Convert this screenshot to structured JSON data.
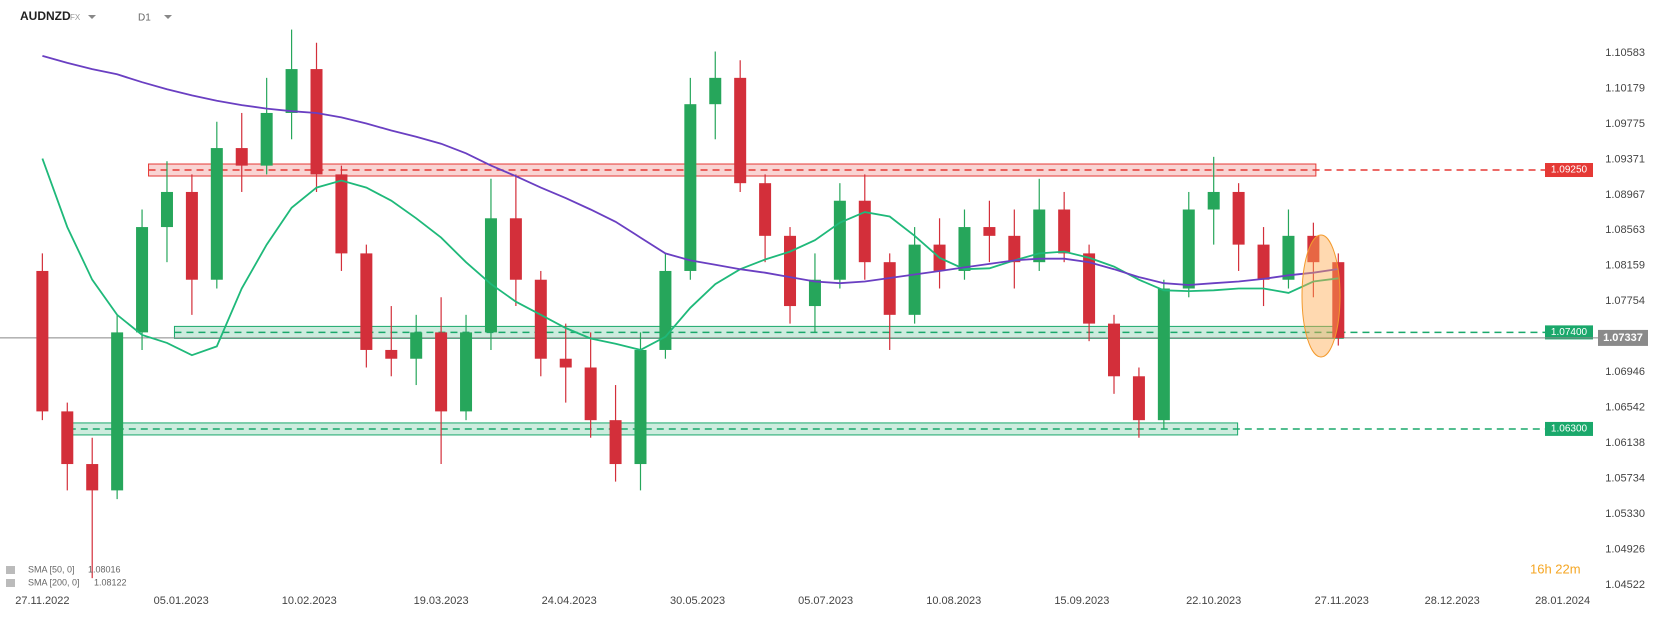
{
  "chart_data": {
    "type": "candlestick",
    "symbol": "AUDNZD",
    "market": "FX",
    "timeframe": "D1",
    "countdown": "16h 22m",
    "xlim": [
      -1.7,
      62.3
    ],
    "xticks": [
      {
        "value": 0,
        "label": "27.11.2022"
      },
      {
        "value": 5.57,
        "label": "05.01.2023"
      },
      {
        "value": 10.71,
        "label": "10.02.2023"
      },
      {
        "value": 16,
        "label": "19.03.2023"
      },
      {
        "value": 21.14,
        "label": "24.04.2023"
      },
      {
        "value": 26.29,
        "label": "30.05.2023"
      },
      {
        "value": 31.43,
        "label": "05.07.2023"
      },
      {
        "value": 36.57,
        "label": "10.08.2023"
      },
      {
        "value": 41.71,
        "label": "15.09.2023"
      },
      {
        "value": 47,
        "label": "22.10.2023"
      },
      {
        "value": 52.14,
        "label": "27.11.2023"
      },
      {
        "value": 56.57,
        "label": "28.12.2023"
      },
      {
        "value": 61,
        "label": "28.01.2024"
      }
    ],
    "ylim": [
      1.04465,
      1.11187
    ],
    "yticks": [
      1.10583,
      1.10179,
      1.09775,
      1.09371,
      1.08967,
      1.08563,
      1.08159,
      1.07754,
      1.06946,
      1.06542,
      1.06138,
      1.05734,
      {
        "value": 1.0533,
        "label": "1.05330"
      },
      1.04926,
      1.04522
    ],
    "up_color": "#26a65b",
    "down_color": "#d32f3a",
    "open": [
      1.081,
      1.065,
      1.059,
      1.056,
      1.074,
      1.086,
      1.09,
      1.08,
      1.095,
      1.093,
      1.099,
      1.104,
      1.092,
      1.083,
      1.072,
      1.071,
      1.074,
      1.065,
      1.074,
      1.087,
      1.08,
      1.071,
      1.07,
      1.064,
      1.059,
      1.072,
      1.081,
      1.1,
      1.103,
      1.091,
      1.085,
      1.077,
      1.08,
      1.089,
      1.082,
      1.076,
      1.084,
      1.081,
      1.086,
      1.085,
      1.082,
      1.088,
      1.083,
      1.075,
      1.069,
      1.064,
      1.079,
      1.088,
      1.09,
      1.084,
      1.08,
      1.085,
      1.082
    ],
    "high": [
      1.083,
      1.066,
      1.062,
      1.076,
      1.088,
      1.0935,
      1.092,
      1.098,
      1.099,
      1.103,
      1.1085,
      1.107,
      1.093,
      1.084,
      1.077,
      1.076,
      1.078,
      1.076,
      1.0915,
      1.092,
      1.081,
      1.075,
      1.074,
      1.068,
      1.074,
      1.083,
      1.103,
      1.106,
      1.105,
      1.092,
      1.086,
      1.083,
      1.091,
      1.092,
      1.083,
      1.086,
      1.087,
      1.088,
      1.089,
      1.088,
      1.0915,
      1.09,
      1.084,
      1.076,
      1.07,
      1.08,
      1.09,
      1.094,
      1.091,
      1.086,
      1.088,
      1.0865,
      1.083
    ],
    "low": [
      1.064,
      1.056,
      1.046,
      1.055,
      1.072,
      1.082,
      1.076,
      1.079,
      1.09,
      1.092,
      1.096,
      1.09,
      1.081,
      1.07,
      1.069,
      1.068,
      1.059,
      1.064,
      1.072,
      1.077,
      1.069,
      1.066,
      1.062,
      1.057,
      1.056,
      1.071,
      1.08,
      1.096,
      1.09,
      1.082,
      1.075,
      1.074,
      1.079,
      1.08,
      1.072,
      1.075,
      1.079,
      1.08,
      1.082,
      1.079,
      1.081,
      1.082,
      1.073,
      1.067,
      1.062,
      1.063,
      1.078,
      1.084,
      1.081,
      1.077,
      1.079,
      1.078,
      1.0725
    ],
    "close": [
      1.065,
      1.059,
      1.056,
      1.074,
      1.086,
      1.09,
      1.08,
      1.095,
      1.093,
      1.099,
      1.104,
      1.092,
      1.083,
      1.072,
      1.071,
      1.074,
      1.065,
      1.074,
      1.087,
      1.08,
      1.071,
      1.07,
      1.064,
      1.059,
      1.072,
      1.081,
      1.1,
      1.103,
      1.091,
      1.085,
      1.077,
      1.08,
      1.089,
      1.082,
      1.076,
      1.084,
      1.081,
      1.086,
      1.085,
      1.082,
      1.088,
      1.083,
      1.075,
      1.069,
      1.064,
      1.079,
      1.088,
      1.09,
      1.084,
      1.08,
      1.085,
      1.082,
      1.07337
    ],
    "series": [
      {
        "name": "SMA [50, 0]",
        "last": 1.08016,
        "color": "#1fb97a",
        "values": [
          1.0938,
          1.086,
          1.08,
          1.076,
          1.0737,
          1.0728,
          1.0714,
          1.0724,
          1.079,
          1.084,
          1.0882,
          1.0905,
          1.0913,
          1.0905,
          1.089,
          1.087,
          1.0848,
          1.082,
          1.0795,
          1.0775,
          1.076,
          1.0745,
          1.0733,
          1.0727,
          1.072,
          1.0735,
          1.0768,
          1.0795,
          1.0812,
          1.0823,
          1.0832,
          1.0845,
          1.0865,
          1.0877,
          1.0872,
          1.085,
          1.0825,
          1.0812,
          1.0813,
          1.0822,
          1.083,
          1.0832,
          1.0825,
          1.0815,
          1.08,
          1.0788,
          1.0787,
          1.0788,
          1.079,
          1.079,
          1.0785,
          1.0798,
          1.08016
        ]
      },
      {
        "name": "SMA [200, 0]",
        "last": 1.08122,
        "color": "#6a3fc2",
        "values": [
          1.1055,
          1.1047,
          1.104,
          1.1034,
          1.1025,
          1.1017,
          1.101,
          1.1004,
          1.0999,
          1.0995,
          1.0992,
          1.099,
          1.0985,
          1.0978,
          1.097,
          1.0963,
          1.0955,
          1.0944,
          1.093,
          1.0918,
          1.0905,
          1.0893,
          1.088,
          1.0866,
          1.0848,
          1.083,
          1.0822,
          1.0817,
          1.0812,
          1.0808,
          1.0803,
          1.0798,
          1.0796,
          1.0798,
          1.0802,
          1.0806,
          1.081,
          1.0814,
          1.0818,
          1.0822,
          1.0824,
          1.0824,
          1.082,
          1.0812,
          1.0803,
          1.0796,
          1.0794,
          1.0796,
          1.0798,
          1.0801,
          1.0805,
          1.0808,
          1.08122
        ]
      }
    ],
    "levels": {
      "values": [
        1.0925,
        1.074,
        1.063
      ],
      "value_labels": [
        "1.09250",
        "1.07400",
        "1.06300"
      ],
      "colors": [
        "#e53935",
        "#1aa86b",
        "#1aa86b"
      ]
    },
    "current_price": 1.07337
  }
}
